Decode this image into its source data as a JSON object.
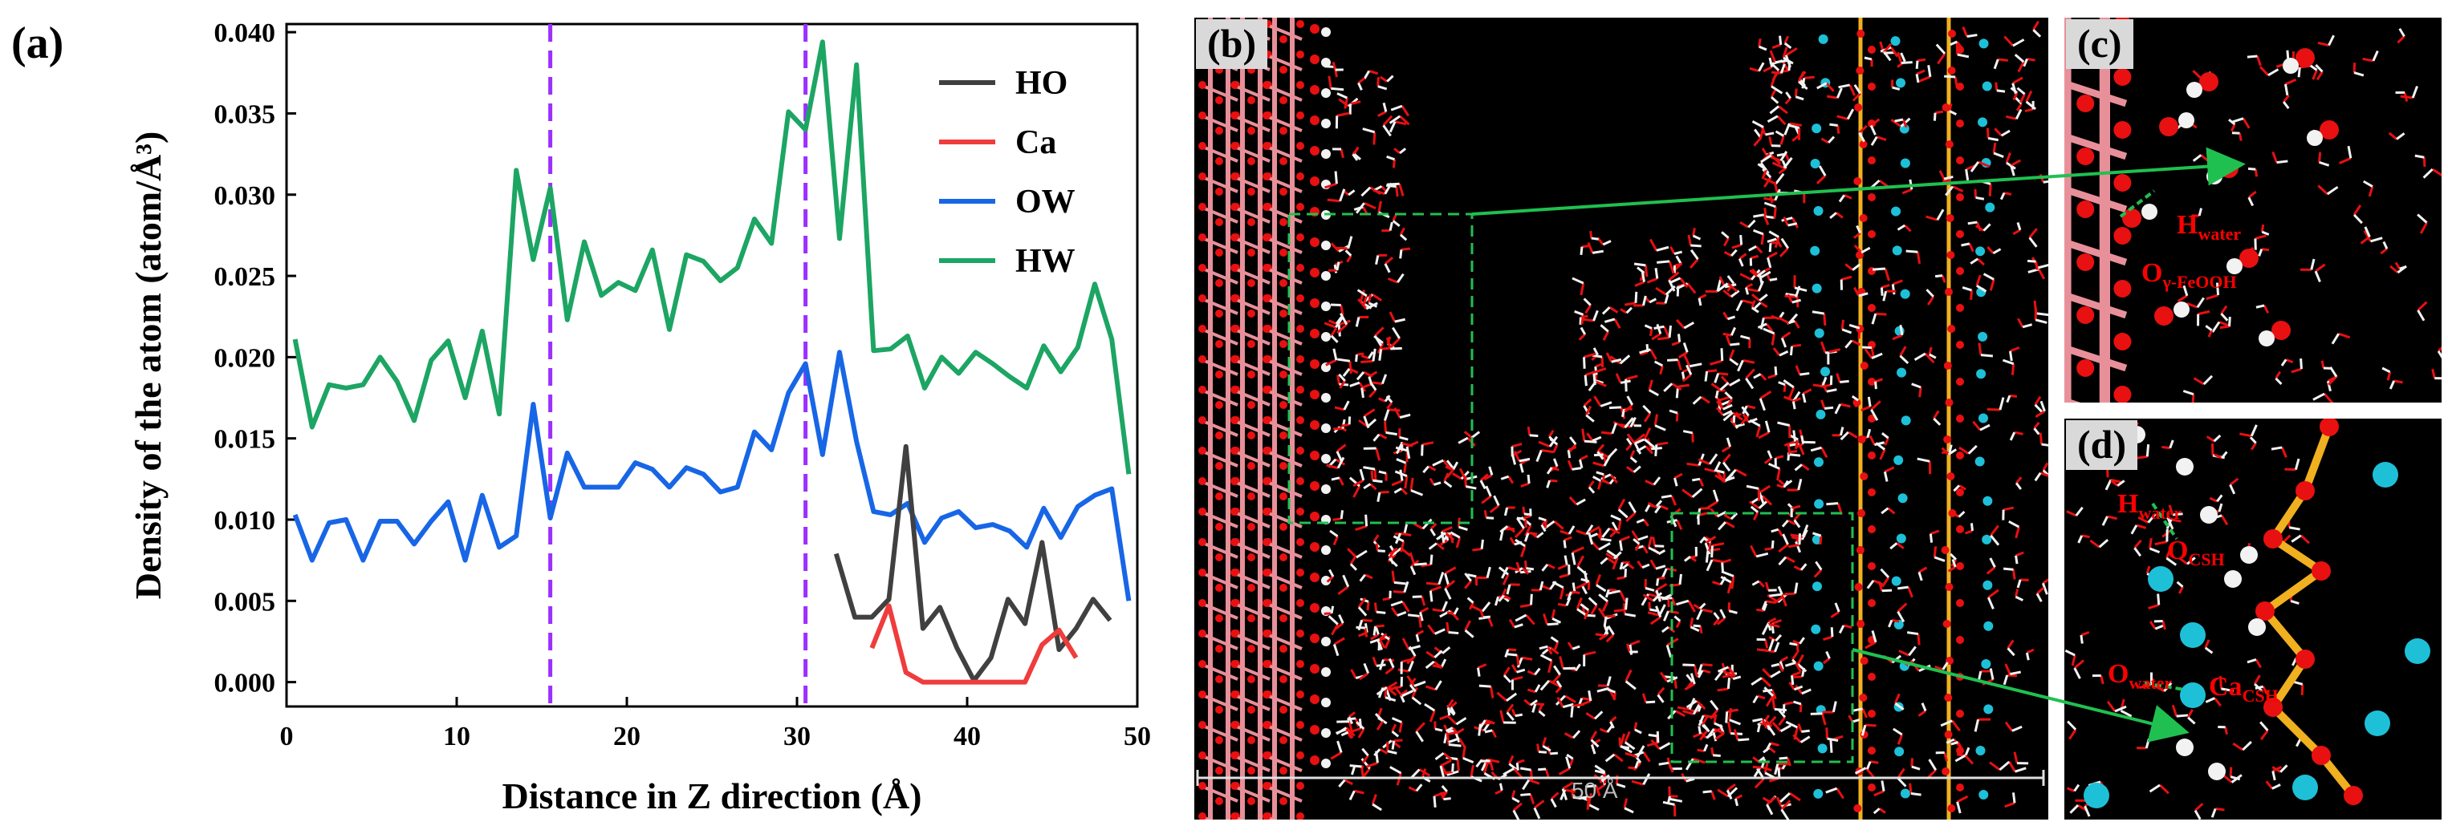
{
  "panels": {
    "a": "(a)",
    "b": "(b)",
    "c": "(c)",
    "d": "(d)"
  },
  "annotations": {
    "c_h_water": "H",
    "c_h_water_sub": "water",
    "c_o_feooh": "O",
    "c_o_feooh_sub": "γ-FeOOH",
    "d_h_water": "H",
    "d_h_water_sub": "water",
    "d_o_csh": "O",
    "d_o_csh_sub": "CSH",
    "d_o_water": "O",
    "d_o_water_sub": "water",
    "d_ca_csh": "Ca",
    "d_ca_csh_sub": "CSH"
  },
  "scale_bar_label": "50 Å",
  "colors": {
    "HO": "#404040",
    "Ca": "#f03c3c",
    "OW": "#1766e6",
    "HW": "#1ca563",
    "vline": "#9b30ff",
    "oxygen": "#e81010",
    "hydrogen": "#f2f2f2",
    "iron": "#e8909a",
    "silicon": "#f0b020",
    "calcium": "#1ec0d8",
    "arrow": "#20c050"
  },
  "chart_data": {
    "type": "line",
    "xlabel": "Distance in Z direction (Å)",
    "ylabel": "Density of the atom (atom/Å³)",
    "xlim": [
      0,
      50
    ],
    "ylim": [
      -0.0015,
      0.0405
    ],
    "xticks": [
      "0",
      "10",
      "20",
      "30",
      "40",
      "50"
    ],
    "yticks": [
      "0.000",
      "0.005",
      "0.010",
      "0.015",
      "0.020",
      "0.025",
      "0.030",
      "0.035",
      "0.040"
    ],
    "vlines": [
      15.5,
      30.5
    ],
    "legend_position": "top-right",
    "series": [
      {
        "name": "HO",
        "x": [
          32.3,
          33.4,
          34.4,
          35.4,
          36.4,
          37.4,
          38.4,
          39.4,
          40.4,
          41.4,
          42.4,
          43.4,
          44.4,
          45.4,
          46.4,
          47.4,
          48.4
        ],
        "y": [
          0.0079,
          0.004,
          0.004,
          0.0051,
          0.0145,
          0.0033,
          0.0046,
          0.0021,
          0.0001,
          0.0015,
          0.0051,
          0.0036,
          0.0086,
          0.002,
          0.0033,
          0.0051,
          0.0038
        ]
      },
      {
        "name": "Ca",
        "x": [
          34.4,
          35.4,
          36.4,
          37.4,
          38.4,
          39.4,
          40.4,
          41.4,
          42.4,
          43.4,
          44.4,
          45.4,
          46.4
        ],
        "y": [
          0.0021,
          0.0047,
          0.0006,
          0.0,
          0.0,
          0.0,
          0.0,
          0.0,
          0.0,
          0.0,
          0.0023,
          0.0032,
          0.0015
        ]
      },
      {
        "name": "OW",
        "x": [
          0.5,
          1.5,
          2.5,
          3.5,
          4.5,
          5.5,
          6.5,
          7.5,
          8.5,
          9.5,
          10.5,
          11.5,
          12.5,
          13.5,
          14.5,
          15.5,
          16.5,
          17.5,
          18.5,
          19.5,
          20.5,
          21.5,
          22.5,
          23.5,
          24.5,
          25.5,
          26.5,
          27.5,
          28.5,
          29.5,
          30.5,
          31.5,
          32.5,
          33.5,
          34.5,
          35.5,
          36.5,
          37.5,
          38.5,
          39.5,
          40.5,
          41.5,
          42.5,
          43.5,
          44.5,
          45.5,
          46.5,
          47.5,
          48.5,
          49.5
        ],
        "y": [
          0.0103,
          0.0075,
          0.0098,
          0.01,
          0.0075,
          0.0099,
          0.0099,
          0.0085,
          0.0099,
          0.0111,
          0.0075,
          0.0115,
          0.0083,
          0.009,
          0.0171,
          0.0101,
          0.0141,
          0.012,
          0.012,
          0.012,
          0.0135,
          0.0131,
          0.012,
          0.0132,
          0.0128,
          0.0117,
          0.012,
          0.0154,
          0.0143,
          0.0178,
          0.0196,
          0.014,
          0.0203,
          0.0148,
          0.0105,
          0.0103,
          0.011,
          0.0086,
          0.0101,
          0.0105,
          0.0095,
          0.0097,
          0.0093,
          0.0083,
          0.0107,
          0.0089,
          0.0108,
          0.0115,
          0.0119,
          0.005
        ]
      },
      {
        "name": "HW",
        "x": [
          0.5,
          1.5,
          2.5,
          3.5,
          4.5,
          5.5,
          6.5,
          7.5,
          8.5,
          9.5,
          10.5,
          11.5,
          12.5,
          13.5,
          14.5,
          15.5,
          16.5,
          17.5,
          18.5,
          19.5,
          20.5,
          21.5,
          22.5,
          23.5,
          24.5,
          25.5,
          26.5,
          27.5,
          28.5,
          29.5,
          30.5,
          31.5,
          32.5,
          33.5,
          34.5,
          35.5,
          36.5,
          37.5,
          38.5,
          39.5,
          40.5,
          41.5,
          42.5,
          43.5,
          44.5,
          45.5,
          46.5,
          47.5,
          48.5,
          49.5
        ],
        "y": [
          0.0211,
          0.0157,
          0.0183,
          0.0181,
          0.0183,
          0.02,
          0.0185,
          0.0161,
          0.0198,
          0.021,
          0.0175,
          0.0216,
          0.0165,
          0.0315,
          0.026,
          0.0304,
          0.0223,
          0.0271,
          0.0238,
          0.0246,
          0.0241,
          0.0266,
          0.0217,
          0.0263,
          0.0259,
          0.0247,
          0.0255,
          0.0285,
          0.027,
          0.0351,
          0.034,
          0.0394,
          0.0273,
          0.038,
          0.0204,
          0.0205,
          0.0213,
          0.0181,
          0.02,
          0.019,
          0.0203,
          0.0196,
          0.0188,
          0.0181,
          0.0207,
          0.0191,
          0.0206,
          0.0245,
          0.0211,
          0.0128
        ]
      }
    ]
  }
}
